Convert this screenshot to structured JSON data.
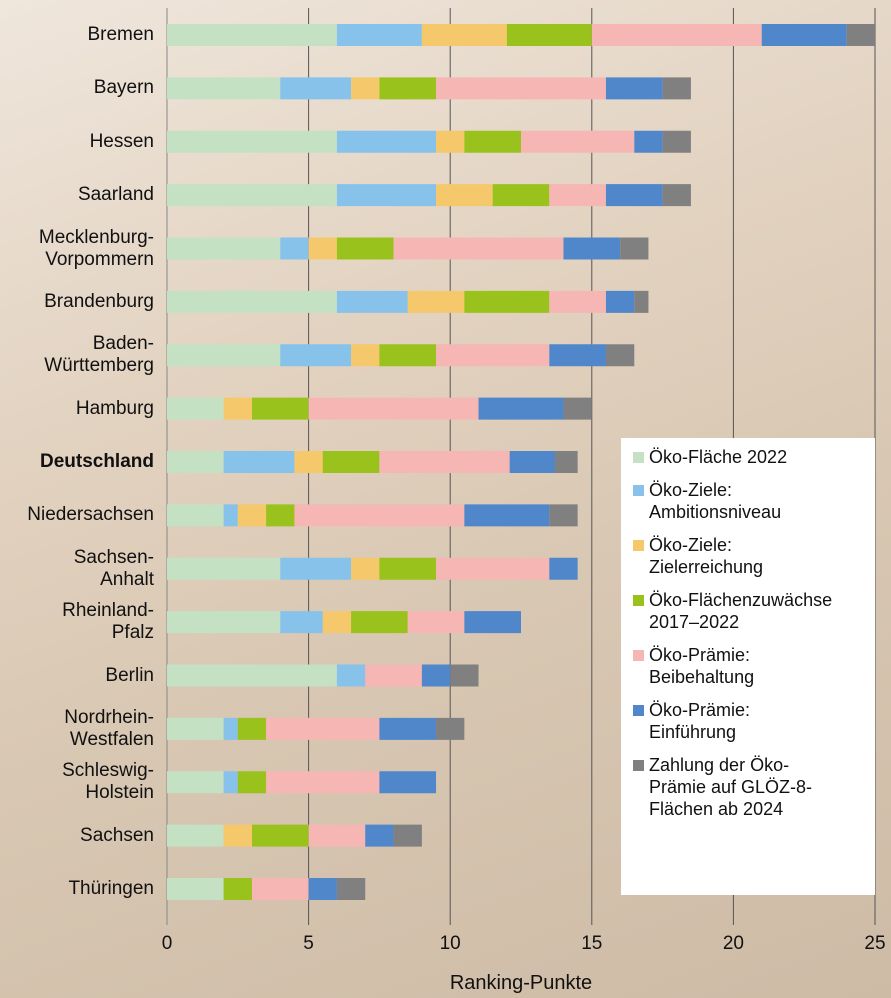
{
  "chart_data": {
    "type": "stacked-bar-horizontal",
    "xlabel": "Ranking-Punkte",
    "categories": [
      "Bremen",
      "Bayern",
      "Hessen",
      "Saarland",
      "Mecklenburg-\nVorpommern",
      "Brandenburg",
      "Baden-\nWürttemberg",
      "Hamburg",
      "Deutschland",
      "Niedersachsen",
      "Sachsen-\nAnhalt",
      "Rheinland-\nPfalz",
      "Berlin",
      "Nordrhein-\nWestfalen",
      "Schleswig-\nHolstein",
      "Sachsen",
      "Thüringen"
    ],
    "bold_categories": [
      8
    ],
    "series": [
      {
        "name": "Öko-Fläche 2022",
        "color": "#c4e1c4",
        "values": [
          6,
          4,
          6,
          6,
          4,
          6,
          4,
          2,
          2,
          2,
          4,
          4,
          6,
          2,
          2,
          2,
          2
        ]
      },
      {
        "name": "Öko-Ziele:\nAmbitionsniveau",
        "color": "#86c2ea",
        "values": [
          3,
          2.5,
          3.5,
          3.5,
          1,
          2.5,
          2.5,
          0,
          2.5,
          0.5,
          2.5,
          1.5,
          1,
          0.5,
          0.5,
          0,
          0
        ]
      },
      {
        "name": "Öko-Ziele:\nZielerreichung",
        "color": "#f6c86c",
        "values": [
          3,
          1,
          1,
          2,
          1,
          2,
          1,
          1,
          1,
          1,
          1,
          1,
          0,
          0,
          0,
          1,
          0
        ]
      },
      {
        "name": "Öko-Flächenzuwächse\n2017–2022",
        "color": "#9ac21c",
        "values": [
          3,
          2,
          2,
          2,
          2,
          3,
          2,
          2,
          2,
          1,
          2,
          2,
          0,
          1,
          1,
          2,
          1
        ]
      },
      {
        "name": "Öko-Prämie:\nBeibehaltung",
        "color": "#f6b6b4",
        "values": [
          6,
          6,
          4,
          2,
          6,
          2,
          4,
          6,
          4.6,
          6,
          4,
          2,
          2,
          4,
          4,
          2,
          2
        ]
      },
      {
        "name": "Öko-Prämie:\nEinführung",
        "color": "#4f87ca",
        "values": [
          3,
          2,
          1,
          2,
          2,
          1,
          2,
          3,
          1.6,
          3,
          1,
          2,
          1,
          2,
          2,
          1,
          1
        ]
      },
      {
        "name": "Zahlung der Öko-\nPrämie auf GLÖZ-8-\nFlächen ab 2024",
        "color": "#808080",
        "values": [
          1,
          1,
          1,
          1,
          1,
          0.5,
          1,
          1,
          0.8,
          1,
          0,
          0,
          1,
          1,
          0,
          1,
          1
        ]
      }
    ],
    "xlim": [
      0,
      25
    ],
    "xticks": [
      0,
      5,
      10,
      15,
      20,
      25
    ],
    "grid": true,
    "legend": "lower right"
  }
}
